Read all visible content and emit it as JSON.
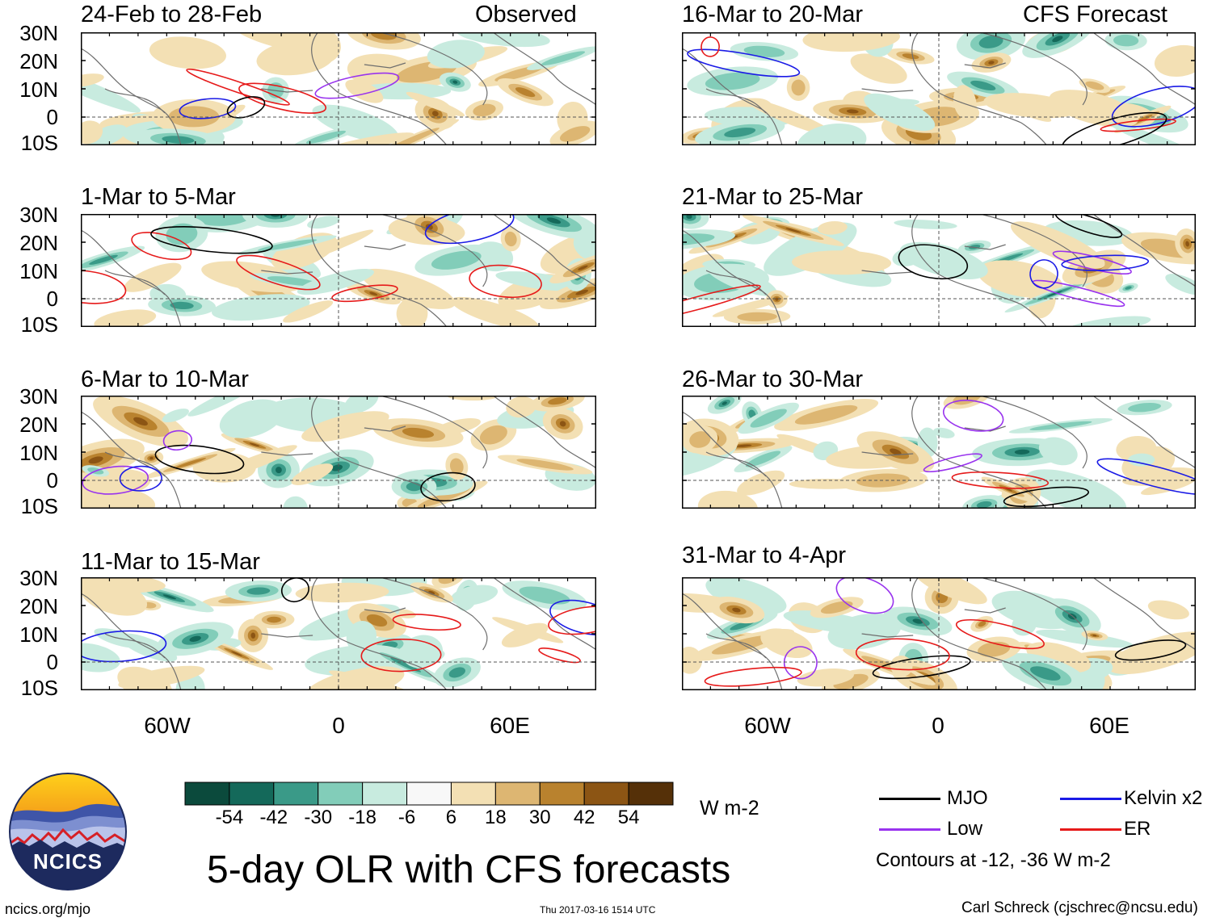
{
  "labels": {
    "observed": "Observed",
    "forecast": "CFS Forecast"
  },
  "panels": {
    "left": [
      {
        "period": "24-Feb to 28-Feb"
      },
      {
        "period": "1-Mar to 5-Mar"
      },
      {
        "period": "6-Mar to 10-Mar"
      },
      {
        "period": "11-Mar to 15-Mar"
      }
    ],
    "right": [
      {
        "period": "16-Mar to 20-Mar"
      },
      {
        "period": "21-Mar to 25-Mar"
      },
      {
        "period": "26-Mar to 30-Mar"
      },
      {
        "period": "31-Mar to 4-Apr"
      }
    ]
  },
  "axes": {
    "lat_ticks": [
      "30N",
      "20N",
      "10N",
      "0",
      "10S"
    ],
    "lon_ticks": [
      "60W",
      "0",
      "60E"
    ]
  },
  "colorbar": {
    "units": "W m-2",
    "labels": [
      "-54",
      "-42",
      "-30",
      "-18",
      "-6",
      "6",
      "18",
      "30",
      "42",
      "54"
    ],
    "colors": [
      "#0b4a3c",
      "#14695a",
      "#3a9a88",
      "#82cdb9",
      "#c8ebdf",
      "#f8f8f8",
      "#f3e0b4",
      "#ddb672",
      "#b9822e",
      "#8c5514",
      "#553008"
    ]
  },
  "legend": {
    "mjo": "MJO",
    "kelvin": "Kelvin x2",
    "low": "Low",
    "er": "ER",
    "contours": "Contours at -12, -36 W m-2",
    "colors": {
      "mjo": "#000000",
      "kelvin": "#1a1ae6",
      "low": "#9933ee",
      "er": "#e61a1a"
    }
  },
  "footer": {
    "main_title": "5-day OLR with CFS forecasts",
    "logo_text": "NCICS",
    "url": "ncics.org/mjo",
    "timestamp": "Thu 2017-03-16 1514 UTC",
    "author": "Carl Schreck (cjschrec@ncsu.edu)"
  }
}
